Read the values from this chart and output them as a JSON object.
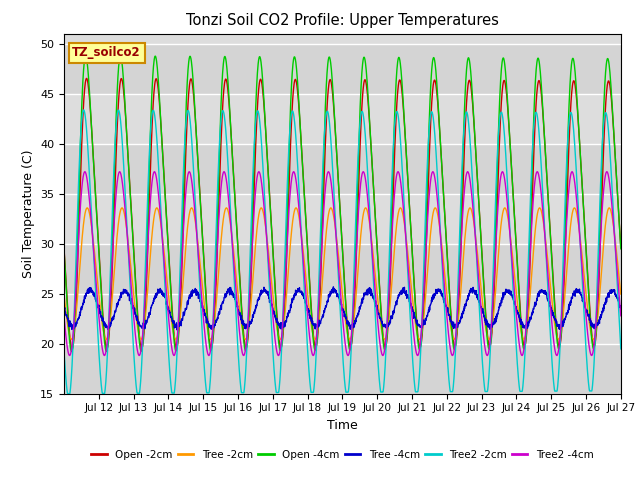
{
  "title": "Tonzi Soil CO2 Profile: Upper Temperatures",
  "xlabel": "Time",
  "ylabel": "Soil Temperature (C)",
  "ylim": [
    15,
    51
  ],
  "yticks": [
    15,
    20,
    25,
    30,
    35,
    40,
    45,
    50
  ],
  "background_color": "#ffffff",
  "plot_bg_color": "#dddddd",
  "label_box_text": "TZ_soilco2",
  "label_box_color": "#ffff99",
  "label_box_edge": "#cc8800",
  "legend_entries": [
    "Open -2cm",
    "Tree -2cm",
    "Open -4cm",
    "Tree -4cm",
    "Tree2 -2cm",
    "Tree2 -4cm"
  ],
  "line_colors": [
    "#cc0000",
    "#ff9900",
    "#00cc00",
    "#0000cc",
    "#00cccc",
    "#cc00cc"
  ],
  "n_days": 16,
  "xtick_labels": [
    "Jul 12",
    "Jul 13",
    "Jul 14",
    "Jul 15",
    "Jul 16",
    "Jul 17",
    "Jul 18",
    "Jul 19",
    "Jul 20",
    "Jul 21",
    "Jul 22",
    "Jul 23",
    "Jul 24",
    "Jul 25",
    "Jul 26",
    "Jul 27"
  ],
  "figsize": [
    6.4,
    4.8
  ],
  "dpi": 100
}
